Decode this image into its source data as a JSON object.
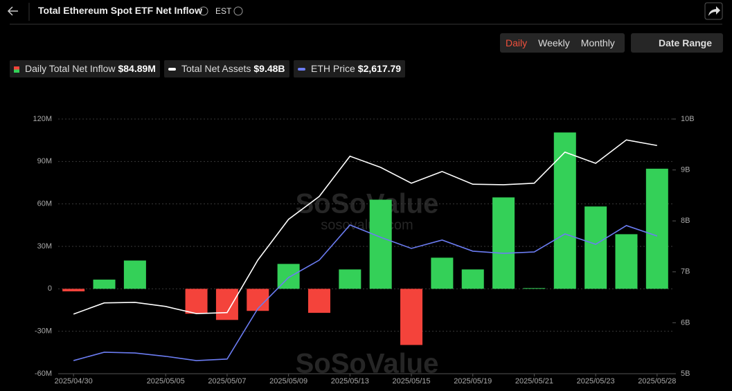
{
  "header": {
    "title": "Total Ethereum Spot ETF Net Inflow",
    "timezone": "EST",
    "periods": [
      "Daily",
      "Weekly",
      "Monthly"
    ],
    "date_button": "Date Range"
  },
  "watermark": {
    "brand": "SoSoValue",
    "site": "sosovalue.com"
  },
  "chart_data": {
    "type": "bar",
    "categories": [
      "2025/04/30",
      null,
      null,
      "2025/05/05",
      null,
      "2025/05/07",
      null,
      "2025/05/09",
      null,
      "2025/05/13",
      null,
      "2025/05/15",
      null,
      "2025/05/19",
      null,
      "2025/05/21",
      null,
      "2025/05/23",
      null,
      "2025/05/28"
    ],
    "series": [
      {
        "name": "Daily Total Net Inflow",
        "type": "bar",
        "color": "#34d058",
        "negative_color": "#f4433b",
        "latest": "$84.89M",
        "values": [
          -1.8,
          6.5,
          20,
          0,
          -17.6,
          -22,
          -15.6,
          17.6,
          -17,
          13.7,
          63,
          -39.7,
          22,
          13.7,
          64.6,
          0.5,
          110.5,
          58.2,
          38.6,
          84.89
        ]
      },
      {
        "name": "Total Net Assets",
        "type": "line",
        "axis": "y2",
        "color": "#ffffff",
        "latest": "$9.48B",
        "values": [
          6.17,
          6.39,
          6.4,
          6.32,
          6.18,
          6.2,
          7.23,
          8.03,
          8.48,
          9.27,
          9.05,
          8.74,
          8.97,
          8.72,
          8.71,
          8.74,
          9.35,
          9.13,
          9.59,
          9.48
        ]
      },
      {
        "name": "ETH Price",
        "type": "line",
        "axis": "y3",
        "color": "#6b7cf2",
        "latest": "$2,617.79",
        "values": [
          1800,
          1855,
          1850,
          1828,
          1800,
          1810,
          2141,
          2345,
          2459,
          2690,
          2609,
          2536,
          2591,
          2518,
          2504,
          2513,
          2631,
          2563,
          2686,
          2617.79
        ]
      }
    ],
    "ylim": [
      -60,
      120
    ],
    "yticks": [
      {
        "value": -60,
        "label": "-60M"
      },
      {
        "value": -30,
        "label": "-30M"
      },
      0,
      {
        "value": 30,
        "label": "30M"
      },
      {
        "value": 60,
        "label": "60M"
      },
      {
        "value": 90,
        "label": "90M"
      },
      {
        "value": 120,
        "label": "120M"
      }
    ],
    "y2lim": [
      5,
      10
    ],
    "y2ticks": [
      {
        "value": 5,
        "label": "5B"
      },
      {
        "value": 6,
        "label": "6B"
      },
      {
        "value": 7,
        "label": "7B"
      },
      {
        "value": 8,
        "label": "8B"
      },
      {
        "value": 9,
        "label": "9B"
      },
      {
        "value": 10,
        "label": "10B"
      }
    ],
    "y3lim": [
      1714,
      3385
    ],
    "grid": true
  }
}
